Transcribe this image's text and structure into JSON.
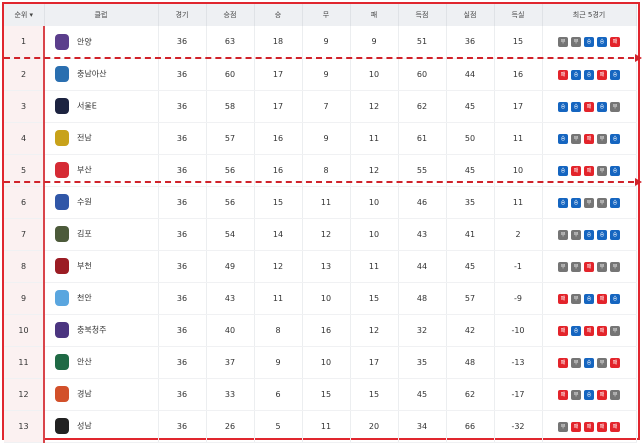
{
  "headers": {
    "rank": "순위 ▾",
    "club": "클럽",
    "played": "경기",
    "points": "승점",
    "wins": "승",
    "draws": "무",
    "losses": "패",
    "gf": "득점",
    "ga": "실점",
    "gd": "득실",
    "recent": "최근 5경기"
  },
  "result_labels": {
    "W": "승",
    "D": "무",
    "L": "패"
  },
  "colors": {
    "W": "#1565c0",
    "D": "#757575",
    "L": "#e3242b",
    "accent": "#e0262e"
  },
  "rows": [
    {
      "rank": "1",
      "club": "안양",
      "logo": "#5b3e8c",
      "played": "36",
      "points": "63",
      "w": "18",
      "d": "9",
      "l": "9",
      "gf": "51",
      "ga": "36",
      "gd": "15",
      "recent": [
        "D",
        "D",
        "W",
        "W",
        "L"
      ]
    },
    {
      "rank": "2",
      "club": "충남아산",
      "logo": "#2a6fb0",
      "played": "36",
      "points": "60",
      "w": "17",
      "d": "9",
      "l": "10",
      "gf": "60",
      "ga": "44",
      "gd": "16",
      "recent": [
        "L",
        "W",
        "W",
        "L",
        "W"
      ]
    },
    {
      "rank": "3",
      "club": "서울E",
      "logo": "#1c2340",
      "played": "36",
      "points": "58",
      "w": "17",
      "d": "7",
      "l": "12",
      "gf": "62",
      "ga": "45",
      "gd": "17",
      "recent": [
        "W",
        "W",
        "L",
        "W",
        "D"
      ]
    },
    {
      "rank": "4",
      "club": "전남",
      "logo": "#c8a21a",
      "played": "36",
      "points": "57",
      "w": "16",
      "d": "9",
      "l": "11",
      "gf": "61",
      "ga": "50",
      "gd": "11",
      "recent": [
        "W",
        "D",
        "L",
        "D",
        "W"
      ]
    },
    {
      "rank": "5",
      "club": "부산",
      "logo": "#d52b35",
      "played": "36",
      "points": "56",
      "w": "16",
      "d": "8",
      "l": "12",
      "gf": "55",
      "ga": "45",
      "gd": "10",
      "recent": [
        "W",
        "L",
        "L",
        "D",
        "W"
      ]
    },
    {
      "rank": "6",
      "club": "수원",
      "logo": "#3057a8",
      "played": "36",
      "points": "56",
      "w": "15",
      "d": "11",
      "l": "10",
      "gf": "46",
      "ga": "35",
      "gd": "11",
      "recent": [
        "W",
        "W",
        "D",
        "D",
        "W"
      ]
    },
    {
      "rank": "7",
      "club": "김포",
      "logo": "#4c5a3a",
      "played": "36",
      "points": "54",
      "w": "14",
      "d": "12",
      "l": "10",
      "gf": "43",
      "ga": "41",
      "gd": "2",
      "recent": [
        "D",
        "D",
        "W",
        "W",
        "W"
      ]
    },
    {
      "rank": "8",
      "club": "부천",
      "logo": "#9b1c24",
      "played": "36",
      "points": "49",
      "w": "12",
      "d": "13",
      "l": "11",
      "gf": "44",
      "ga": "45",
      "gd": "-1",
      "recent": [
        "D",
        "D",
        "L",
        "D",
        "D"
      ]
    },
    {
      "rank": "9",
      "club": "천안",
      "logo": "#5aa6df",
      "played": "36",
      "points": "43",
      "w": "11",
      "d": "10",
      "l": "15",
      "gf": "48",
      "ga": "57",
      "gd": "-9",
      "recent": [
        "L",
        "D",
        "W",
        "L",
        "W"
      ]
    },
    {
      "rank": "10",
      "club": "충북청주",
      "logo": "#4b3580",
      "played": "36",
      "points": "40",
      "w": "8",
      "d": "16",
      "l": "12",
      "gf": "32",
      "ga": "42",
      "gd": "-10",
      "recent": [
        "L",
        "W",
        "L",
        "L",
        "D"
      ]
    },
    {
      "rank": "11",
      "club": "안산",
      "logo": "#1f6a45",
      "played": "36",
      "points": "37",
      "w": "9",
      "d": "10",
      "l": "17",
      "gf": "35",
      "ga": "48",
      "gd": "-13",
      "recent": [
        "L",
        "D",
        "W",
        "D",
        "L"
      ]
    },
    {
      "rank": "12",
      "club": "경남",
      "logo": "#d2502a",
      "played": "36",
      "points": "33",
      "w": "6",
      "d": "15",
      "l": "15",
      "gf": "45",
      "ga": "62",
      "gd": "-17",
      "recent": [
        "L",
        "D",
        "W",
        "L",
        "D"
      ]
    },
    {
      "rank": "13",
      "club": "성남",
      "logo": "#222222",
      "played": "36",
      "points": "26",
      "w": "5",
      "d": "11",
      "l": "20",
      "gf": "34",
      "ga": "66",
      "gd": "-32",
      "recent": [
        "D",
        "L",
        "L",
        "L",
        "L"
      ]
    }
  ]
}
